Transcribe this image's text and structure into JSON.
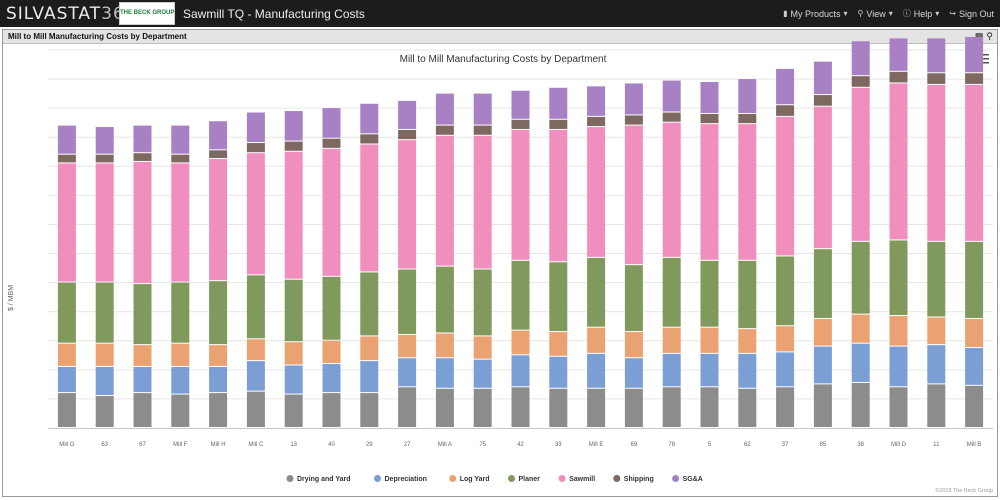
{
  "app": {
    "brand": "SILVASTAT",
    "brand_suffix": "36",
    "logo_text": "THE BECK GROUP",
    "title": "Sawmill TQ - Manufacturing Costs"
  },
  "nav": {
    "my_products": "My Products",
    "view": "View",
    "help": "Help",
    "sign_out": "Sign Out"
  },
  "panel": {
    "title": "Mill to Mill Manufacturing Costs by Department"
  },
  "chart_data": {
    "type": "bar",
    "stacked": true,
    "title": "Mill to Mill Manufacturing Costs by Department",
    "ylabel": "$ / MBM",
    "xlabel": "",
    "ylim": [
      0,
      260
    ],
    "gridlines": [
      20,
      40,
      60,
      80,
      100,
      120,
      140,
      160,
      180,
      200,
      220,
      240,
      260
    ],
    "ytick_labels_visible": false,
    "legend_position": "bottom-center",
    "categories": [
      "Mill G",
      "63",
      "67",
      "Mill F",
      "Mill H",
      "Mill C",
      "13",
      "40",
      "29",
      "27",
      "Mill A",
      "75",
      "42",
      "33",
      "Mill E",
      "69",
      "78",
      "5",
      "62",
      "37",
      "85",
      "38",
      "Mill D",
      "11",
      "Mill B"
    ],
    "series": [
      {
        "name": "Drying and Yard",
        "color": "#8c8c8c",
        "values": [
          24,
          22,
          24,
          23,
          24,
          25,
          23,
          24,
          24,
          28,
          27,
          27,
          28,
          27,
          27,
          27,
          28,
          28,
          27,
          28,
          30,
          31,
          28,
          30,
          29
        ]
      },
      {
        "name": "Depreciation",
        "color": "#7b9fd4",
        "values": [
          18,
          20,
          18,
          19,
          18,
          21,
          20,
          20,
          22,
          20,
          21,
          20,
          22,
          22,
          24,
          21,
          23,
          23,
          24,
          24,
          26,
          27,
          28,
          27,
          26
        ]
      },
      {
        "name": "Log Yard",
        "color": "#eba272",
        "values": [
          16,
          16,
          15,
          16,
          15,
          15,
          16,
          16,
          17,
          16,
          17,
          16,
          17,
          17,
          18,
          18,
          18,
          18,
          17,
          18,
          19,
          20,
          21,
          19,
          20
        ]
      },
      {
        "name": "Planer",
        "color": "#7f9a5c",
        "values": [
          42,
          42,
          42,
          42,
          44,
          44,
          43,
          44,
          44,
          45,
          46,
          46,
          48,
          48,
          48,
          46,
          48,
          46,
          47,
          48,
          48,
          50,
          52,
          52,
          53
        ]
      },
      {
        "name": "Sawmill",
        "color": "#f08ebd",
        "values": [
          82,
          82,
          84,
          82,
          84,
          84,
          88,
          88,
          88,
          89,
          90,
          92,
          90,
          91,
          90,
          96,
          93,
          94,
          94,
          96,
          98,
          106,
          108,
          108,
          108
        ]
      },
      {
        "name": "Shipping",
        "color": "#7d6960",
        "values": [
          6,
          6,
          6,
          6,
          6,
          7,
          7,
          7,
          7,
          7,
          7,
          7,
          7,
          7,
          7,
          7,
          7,
          7,
          7,
          8,
          8,
          8,
          8,
          8,
          8
        ]
      },
      {
        "name": "SG&A",
        "color": "#a781c3",
        "values": [
          20,
          19,
          19,
          20,
          20,
          21,
          21,
          21,
          21,
          20,
          22,
          22,
          20,
          22,
          21,
          22,
          22,
          22,
          24,
          25,
          23,
          24,
          23,
          24,
          25
        ]
      }
    ],
    "credit": "©2019 The Beck Group"
  },
  "colors": {
    "topbar": "#1c1c1c",
    "panel_header": "#e4e4e4",
    "gridline": "#e6e6e6"
  },
  "icons": {
    "menu": "hamburger-icon",
    "panel": [
      "export-icon",
      "zoom-icon"
    ]
  }
}
